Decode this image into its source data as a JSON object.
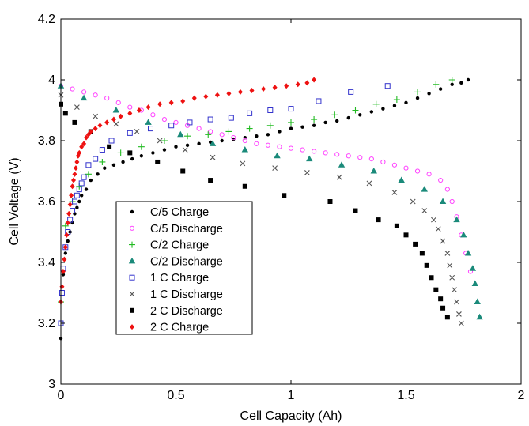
{
  "chart_data": {
    "type": "scatter",
    "title": "",
    "xlabel": "Cell Capacity (Ah)",
    "ylabel": "Cell Voltage (V)",
    "xlim": [
      0,
      2
    ],
    "ylim": [
      3,
      4.2
    ],
    "xticks": [
      "0",
      "0.5",
      "1",
      "1.5",
      "2"
    ],
    "yticks": [
      "3",
      "3.2",
      "3.4",
      "3.6",
      "3.8",
      "4",
      "4.2"
    ],
    "grid": false,
    "legend_position": "center-left",
    "series": [
      {
        "name": "C/5 Charge",
        "marker": "dot",
        "color": "#000000",
        "points": [
          [
            0,
            3.15
          ],
          [
            0.01,
            3.36
          ],
          [
            0.02,
            3.43
          ],
          [
            0.03,
            3.47
          ],
          [
            0.04,
            3.5
          ],
          [
            0.05,
            3.53
          ],
          [
            0.06,
            3.56
          ],
          [
            0.07,
            3.58
          ],
          [
            0.08,
            3.6
          ],
          [
            0.09,
            3.62
          ],
          [
            0.11,
            3.64
          ],
          [
            0.13,
            3.67
          ],
          [
            0.16,
            3.69
          ],
          [
            0.19,
            3.71
          ],
          [
            0.23,
            3.72
          ],
          [
            0.27,
            3.73
          ],
          [
            0.31,
            3.74
          ],
          [
            0.35,
            3.75
          ],
          [
            0.4,
            3.76
          ],
          [
            0.45,
            3.77
          ],
          [
            0.5,
            3.78
          ],
          [
            0.55,
            3.785
          ],
          [
            0.6,
            3.79
          ],
          [
            0.65,
            3.795
          ],
          [
            0.7,
            3.8
          ],
          [
            0.75,
            3.805
          ],
          [
            0.8,
            3.81
          ],
          [
            0.85,
            3.815
          ],
          [
            0.9,
            3.82
          ],
          [
            0.95,
            3.83
          ],
          [
            1.0,
            3.84
          ],
          [
            1.05,
            3.845
          ],
          [
            1.1,
            3.85
          ],
          [
            1.15,
            3.86
          ],
          [
            1.2,
            3.865
          ],
          [
            1.25,
            3.875
          ],
          [
            1.3,
            3.885
          ],
          [
            1.35,
            3.895
          ],
          [
            1.4,
            3.905
          ],
          [
            1.45,
            3.915
          ],
          [
            1.5,
            3.925
          ],
          [
            1.55,
            3.94
          ],
          [
            1.6,
            3.955
          ],
          [
            1.65,
            3.97
          ],
          [
            1.7,
            3.985
          ],
          [
            1.74,
            3.99
          ],
          [
            1.77,
            4.0
          ]
        ]
      },
      {
        "name": "C/5 Discharge",
        "marker": "open-circle",
        "color": "#ff44ff",
        "points": [
          [
            0.0,
            3.98
          ],
          [
            0.05,
            3.97
          ],
          [
            0.1,
            3.96
          ],
          [
            0.15,
            3.95
          ],
          [
            0.2,
            3.94
          ],
          [
            0.25,
            3.925
          ],
          [
            0.3,
            3.91
          ],
          [
            0.35,
            3.9
          ],
          [
            0.4,
            3.885
          ],
          [
            0.45,
            3.87
          ],
          [
            0.5,
            3.86
          ],
          [
            0.55,
            3.85
          ],
          [
            0.6,
            3.84
          ],
          [
            0.65,
            3.83
          ],
          [
            0.7,
            3.82
          ],
          [
            0.75,
            3.81
          ],
          [
            0.8,
            3.8
          ],
          [
            0.85,
            3.79
          ],
          [
            0.9,
            3.785
          ],
          [
            0.95,
            3.78
          ],
          [
            1.0,
            3.775
          ],
          [
            1.05,
            3.77
          ],
          [
            1.1,
            3.765
          ],
          [
            1.15,
            3.76
          ],
          [
            1.2,
            3.755
          ],
          [
            1.25,
            3.75
          ],
          [
            1.3,
            3.745
          ],
          [
            1.35,
            3.74
          ],
          [
            1.4,
            3.73
          ],
          [
            1.45,
            3.72
          ],
          [
            1.5,
            3.71
          ],
          [
            1.55,
            3.7
          ],
          [
            1.6,
            3.69
          ],
          [
            1.65,
            3.67
          ],
          [
            1.68,
            3.64
          ],
          [
            1.7,
            3.6
          ],
          [
            1.72,
            3.55
          ],
          [
            1.74,
            3.49
          ],
          [
            1.76,
            3.43
          ],
          [
            1.78,
            3.37
          ]
        ]
      },
      {
        "name": "C/2 Charge",
        "marker": "plus",
        "color": "#22bb22",
        "points": [
          [
            0.0,
            3.27
          ],
          [
            0.02,
            3.52
          ],
          [
            0.05,
            3.6
          ],
          [
            0.08,
            3.65
          ],
          [
            0.12,
            3.69
          ],
          [
            0.18,
            3.73
          ],
          [
            0.26,
            3.76
          ],
          [
            0.35,
            3.78
          ],
          [
            0.45,
            3.8
          ],
          [
            0.55,
            3.815
          ],
          [
            0.64,
            3.82
          ],
          [
            0.73,
            3.83
          ],
          [
            0.82,
            3.84
          ],
          [
            0.91,
            3.85
          ],
          [
            1.0,
            3.86
          ],
          [
            1.1,
            3.87
          ],
          [
            1.19,
            3.885
          ],
          [
            1.28,
            3.9
          ],
          [
            1.37,
            3.92
          ],
          [
            1.46,
            3.935
          ],
          [
            1.55,
            3.96
          ],
          [
            1.63,
            3.985
          ],
          [
            1.7,
            4.0
          ]
        ]
      },
      {
        "name": "C/2 Discharge",
        "marker": "triangle",
        "color": "#1a8a7a",
        "points": [
          [
            0.0,
            3.98
          ],
          [
            0.1,
            3.94
          ],
          [
            0.24,
            3.9
          ],
          [
            0.38,
            3.86
          ],
          [
            0.52,
            3.82
          ],
          [
            0.66,
            3.79
          ],
          [
            0.8,
            3.77
          ],
          [
            0.94,
            3.75
          ],
          [
            1.08,
            3.74
          ],
          [
            1.22,
            3.72
          ],
          [
            1.36,
            3.7
          ],
          [
            1.48,
            3.67
          ],
          [
            1.58,
            3.64
          ],
          [
            1.66,
            3.6
          ],
          [
            1.72,
            3.54
          ],
          [
            1.75,
            3.49
          ],
          [
            1.77,
            3.43
          ],
          [
            1.79,
            3.38
          ],
          [
            1.8,
            3.33
          ],
          [
            1.81,
            3.27
          ],
          [
            1.82,
            3.22
          ]
        ]
      },
      {
        "name": "1 C Charge",
        "marker": "open-square",
        "color": "#3333cc",
        "points": [
          [
            0.0,
            3.2
          ],
          [
            0.005,
            3.3
          ],
          [
            0.01,
            3.38
          ],
          [
            0.02,
            3.45
          ],
          [
            0.03,
            3.5
          ],
          [
            0.04,
            3.54
          ],
          [
            0.05,
            3.57
          ],
          [
            0.06,
            3.6
          ],
          [
            0.07,
            3.62
          ],
          [
            0.08,
            3.64
          ],
          [
            0.09,
            3.66
          ],
          [
            0.1,
            3.68
          ],
          [
            0.12,
            3.72
          ],
          [
            0.15,
            3.74
          ],
          [
            0.18,
            3.77
          ],
          [
            0.22,
            3.8
          ],
          [
            0.3,
            3.825
          ],
          [
            0.39,
            3.84
          ],
          [
            0.48,
            3.85
          ],
          [
            0.56,
            3.86
          ],
          [
            0.65,
            3.87
          ],
          [
            0.74,
            3.875
          ],
          [
            0.82,
            3.89
          ],
          [
            0.91,
            3.9
          ],
          [
            1.0,
            3.905
          ],
          [
            1.12,
            3.93
          ],
          [
            1.26,
            3.96
          ],
          [
            1.42,
            3.98
          ]
        ]
      },
      {
        "name": "1 C Discharge",
        "marker": "cross",
        "color": "#555555",
        "points": [
          [
            0.0,
            3.95
          ],
          [
            0.07,
            3.91
          ],
          [
            0.15,
            3.88
          ],
          [
            0.24,
            3.855
          ],
          [
            0.33,
            3.83
          ],
          [
            0.43,
            3.8
          ],
          [
            0.54,
            3.77
          ],
          [
            0.66,
            3.745
          ],
          [
            0.79,
            3.725
          ],
          [
            0.93,
            3.71
          ],
          [
            1.07,
            3.695
          ],
          [
            1.21,
            3.68
          ],
          [
            1.34,
            3.66
          ],
          [
            1.45,
            3.63
          ],
          [
            1.53,
            3.6
          ],
          [
            1.58,
            3.57
          ],
          [
            1.62,
            3.54
          ],
          [
            1.64,
            3.51
          ],
          [
            1.66,
            3.47
          ],
          [
            1.68,
            3.43
          ],
          [
            1.69,
            3.39
          ],
          [
            1.7,
            3.35
          ],
          [
            1.71,
            3.31
          ],
          [
            1.72,
            3.27
          ],
          [
            1.73,
            3.23
          ],
          [
            1.74,
            3.2
          ]
        ]
      },
      {
        "name": "2 C Discharge",
        "marker": "square",
        "color": "#000000",
        "points": [
          [
            0.0,
            3.92
          ],
          [
            0.02,
            3.89
          ],
          [
            0.06,
            3.86
          ],
          [
            0.13,
            3.83
          ],
          [
            0.21,
            3.78
          ],
          [
            0.3,
            3.76
          ],
          [
            0.42,
            3.73
          ],
          [
            0.53,
            3.7
          ],
          [
            0.65,
            3.67
          ],
          [
            0.8,
            3.65
          ],
          [
            0.97,
            3.62
          ],
          [
            1.17,
            3.6
          ],
          [
            1.28,
            3.57
          ],
          [
            1.38,
            3.54
          ],
          [
            1.46,
            3.52
          ],
          [
            1.5,
            3.49
          ],
          [
            1.54,
            3.46
          ],
          [
            1.57,
            3.43
          ],
          [
            1.59,
            3.39
          ],
          [
            1.61,
            3.35
          ],
          [
            1.63,
            3.31
          ],
          [
            1.65,
            3.28
          ],
          [
            1.66,
            3.25
          ],
          [
            1.68,
            3.22
          ]
        ]
      },
      {
        "name": "2 C Charge",
        "marker": "diamond",
        "color": "#ee1111",
        "points": [
          [
            0.0,
            3.27
          ],
          [
            0.005,
            3.32
          ],
          [
            0.01,
            3.37
          ],
          [
            0.015,
            3.41
          ],
          [
            0.02,
            3.45
          ],
          [
            0.025,
            3.49
          ],
          [
            0.03,
            3.53
          ],
          [
            0.035,
            3.56
          ],
          [
            0.04,
            3.59
          ],
          [
            0.045,
            3.62
          ],
          [
            0.05,
            3.65
          ],
          [
            0.055,
            3.67
          ],
          [
            0.06,
            3.69
          ],
          [
            0.065,
            3.71
          ],
          [
            0.07,
            3.73
          ],
          [
            0.075,
            3.75
          ],
          [
            0.08,
            3.76
          ],
          [
            0.09,
            3.78
          ],
          [
            0.1,
            3.79
          ],
          [
            0.11,
            3.81
          ],
          [
            0.12,
            3.82
          ],
          [
            0.13,
            3.83
          ],
          [
            0.15,
            3.84
          ],
          [
            0.17,
            3.85
          ],
          [
            0.2,
            3.86
          ],
          [
            0.23,
            3.87
          ],
          [
            0.26,
            3.88
          ],
          [
            0.3,
            3.89
          ],
          [
            0.34,
            3.9
          ],
          [
            0.38,
            3.91
          ],
          [
            0.43,
            3.92
          ],
          [
            0.48,
            3.925
          ],
          [
            0.53,
            3.93
          ],
          [
            0.58,
            3.94
          ],
          [
            0.63,
            3.945
          ],
          [
            0.68,
            3.95
          ],
          [
            0.73,
            3.955
          ],
          [
            0.78,
            3.96
          ],
          [
            0.83,
            3.965
          ],
          [
            0.88,
            3.97
          ],
          [
            0.93,
            3.975
          ],
          [
            0.98,
            3.98
          ],
          [
            1.03,
            3.985
          ],
          [
            1.07,
            3.99
          ],
          [
            1.1,
            4.0
          ]
        ]
      }
    ]
  }
}
